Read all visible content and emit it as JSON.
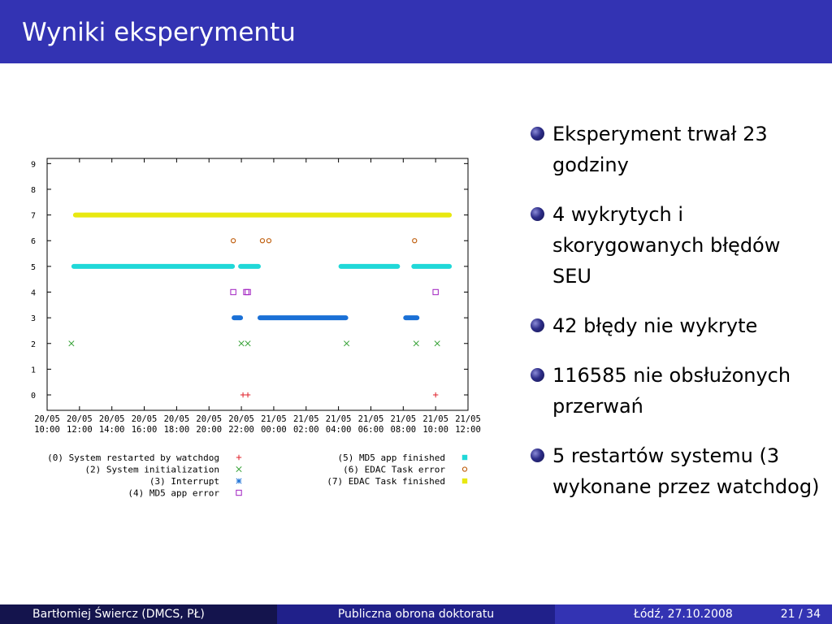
{
  "slide": {
    "title": "Wyniki eksperymentu",
    "bullets": [
      "Eksperyment trwał 23 godziny",
      "4 wykrytych i skorygowanych błędów SEU",
      "42 błędy nie wykryte",
      "116585 nie obsłużonych przerwań",
      "5 restartów systemu (3 wykonane przez watchdog)"
    ],
    "footer": {
      "author": "Bartłomiej Świercz  (DMCS, PŁ)",
      "talk": "Publiczna obrona doktoratu",
      "date": "Łódź, 27.10.2008",
      "page": "21 / 34"
    }
  },
  "chart_data": {
    "type": "scatter",
    "xlim": [
      -2,
      24
    ],
    "ylim": [
      -0.6,
      9.2
    ],
    "yticks": [
      0,
      1,
      2,
      3,
      4,
      5,
      6,
      7,
      8,
      9
    ],
    "xticks": [
      {
        "x": -2,
        "date": "20/05",
        "time": "10:00"
      },
      {
        "x": 0,
        "date": "20/05",
        "time": "12:00"
      },
      {
        "x": 2,
        "date": "20/05",
        "time": "14:00"
      },
      {
        "x": 4,
        "date": "20/05",
        "time": "16:00"
      },
      {
        "x": 6,
        "date": "20/05",
        "time": "18:00"
      },
      {
        "x": 8,
        "date": "20/05",
        "time": "20:00"
      },
      {
        "x": 10,
        "date": "20/05",
        "time": "22:00"
      },
      {
        "x": 12,
        "date": "21/05",
        "time": "00:00"
      },
      {
        "x": 14,
        "date": "21/05",
        "time": "02:00"
      },
      {
        "x": 16,
        "date": "21/05",
        "time": "04:00"
      },
      {
        "x": 18,
        "date": "21/05",
        "time": "06:00"
      },
      {
        "x": 20,
        "date": "21/05",
        "time": "08:00"
      },
      {
        "x": 22,
        "date": "21/05",
        "time": "10:00"
      },
      {
        "x": 24,
        "date": "21/05",
        "time": "12:00"
      }
    ],
    "series": [
      {
        "name": "(0) System restarted by watchdog",
        "value": 0,
        "marker": "plus",
        "color": "#e0202a",
        "points": [
          10.1,
          10.4,
          22.0
        ]
      },
      {
        "name": "(2) System initialization",
        "value": 2,
        "marker": "cross",
        "color": "#2e9e2e",
        "points": [
          -0.5,
          10.0,
          10.4,
          16.5,
          20.8,
          22.1
        ]
      },
      {
        "name": "(3) Interrupt",
        "value": 3,
        "marker": "star",
        "color": "#1a70d6",
        "segments": [
          [
            9.4,
            10.1
          ],
          [
            11.0,
            16.6
          ],
          [
            20.0,
            21.0
          ]
        ]
      },
      {
        "name": "(4) MD5 app error",
        "value": 4,
        "marker": "square",
        "color": "#a020c0",
        "points": [
          9.5,
          10.3,
          10.4,
          22.0
        ]
      },
      {
        "name": "(5) MD5 app finished",
        "value": 5,
        "marker": "filled-square",
        "color": "#20d8d8",
        "segments": [
          [
            -0.5,
            9.6
          ],
          [
            9.8,
            11.2
          ],
          [
            16.0,
            19.8
          ],
          [
            20.5,
            23.0
          ]
        ]
      },
      {
        "name": "(6) EDAC Task error",
        "value": 6,
        "marker": "circle",
        "color": "#c06010",
        "points": [
          9.5,
          11.3,
          11.7,
          20.7
        ]
      },
      {
        "name": "(7) EDAC Task finished",
        "value": 7,
        "marker": "filled-square",
        "color": "#e8e810",
        "segments": [
          [
            -0.4,
            23.0
          ]
        ]
      }
    ]
  }
}
